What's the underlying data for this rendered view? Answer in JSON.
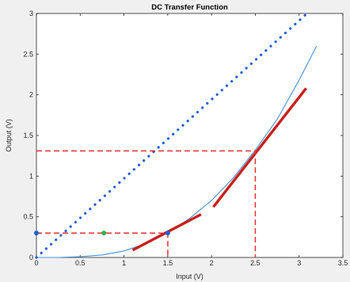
{
  "chart_data": {
    "type": "line",
    "title": "DC Transfer Function",
    "xlabel": "Input (V)",
    "ylabel": "Output (V)",
    "xlim": [
      0,
      3.5
    ],
    "ylim": [
      0,
      3
    ],
    "xticks": [
      "0",
      "0.5",
      "1",
      "1.5",
      "2",
      "2.5",
      "3",
      "3.5"
    ],
    "yticks": [
      "0",
      "0.5",
      "1",
      "1.5",
      "2",
      "2.5",
      "3"
    ],
    "grid": false,
    "series": [
      {
        "style": "solid thin curve",
        "color": "#4a90d9",
        "x": [
          0,
          0.25,
          0.5,
          0.75,
          1.0,
          1.25,
          1.5,
          1.75,
          2.0,
          2.25,
          2.5,
          2.75,
          3.0,
          3.2
        ],
        "y": [
          0.0,
          0.0,
          0.01,
          0.03,
          0.08,
          0.17,
          0.3,
          0.48,
          0.7,
          0.98,
          1.32,
          1.7,
          2.18,
          2.6
        ]
      },
      {
        "style": "dotted line",
        "color": "#1f5fd8",
        "x": [
          0,
          3.09
        ],
        "y": [
          0,
          3.0
        ]
      },
      {
        "style": "thick solid tangent",
        "color": "#c8201a",
        "x": [
          1.1,
          1.88
        ],
        "y": [
          0.09,
          0.53
        ]
      },
      {
        "style": "thick solid tangent",
        "color": "#c8201a",
        "x": [
          2.02,
          3.08
        ],
        "y": [
          0.62,
          2.08
        ]
      },
      {
        "style": "dashed",
        "color": "#e0342b",
        "x": [
          0,
          1.5,
          1.5
        ],
        "y": [
          0.3,
          0.3,
          0
        ]
      },
      {
        "style": "dashed",
        "color": "#e0342b",
        "x": [
          0,
          2.5,
          2.5
        ],
        "y": [
          1.31,
          1.31,
          0
        ]
      },
      {
        "style": "markers",
        "color": "#1f5fd8",
        "x": [
          0,
          1.5
        ],
        "y": [
          0.3,
          0.3
        ]
      },
      {
        "style": "markers",
        "color": "#2db34a",
        "x": [
          0.77
        ],
        "y": [
          0.3
        ]
      }
    ]
  }
}
